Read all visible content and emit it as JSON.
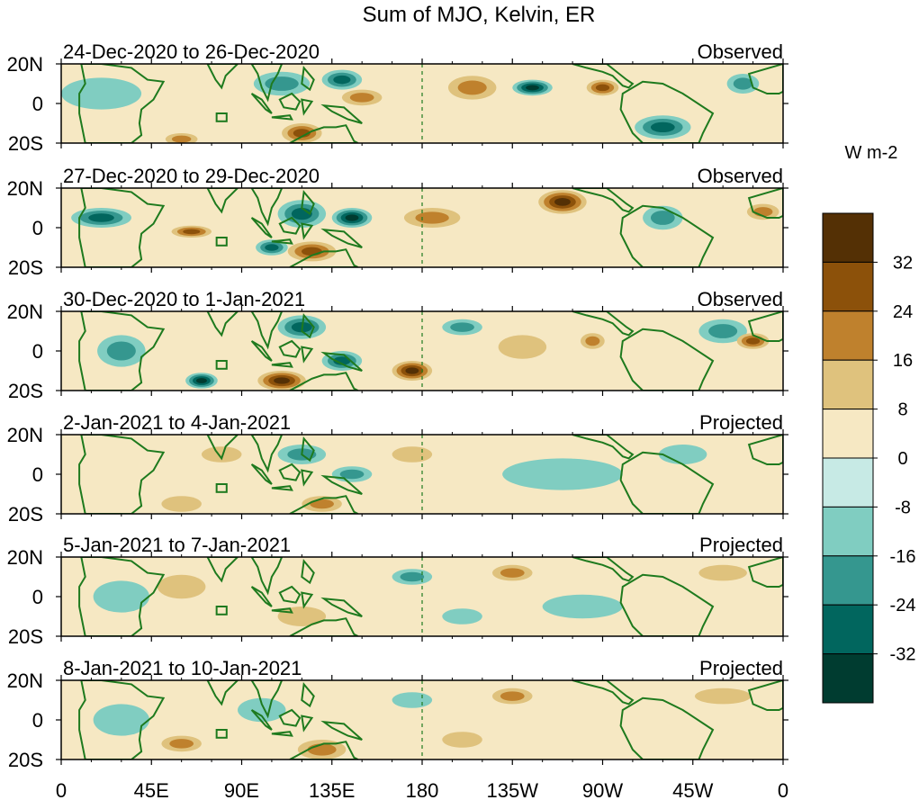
{
  "chart_data": {
    "type": "heatmap",
    "title": "Sum of MJO, Kelvin, ER",
    "units": "W m-2",
    "x_tick_labels": [
      "0",
      "45E",
      "90E",
      "135E",
      "180",
      "135W",
      "90W",
      "45W",
      "0"
    ],
    "y_tick_labels": [
      "20N",
      "0",
      "20S"
    ],
    "y_range": [
      -20,
      20
    ],
    "x_range": [
      0,
      360
    ],
    "colorbar": {
      "labels": [
        "32",
        "24",
        "16",
        "8",
        "0",
        "-8",
        "-16",
        "-24",
        "-32"
      ],
      "levels": [
        32,
        24,
        16,
        8,
        0,
        -8,
        -16,
        -24,
        -32
      ],
      "colors": [
        "#543005",
        "#8c510a",
        "#bf812d",
        "#dfc27d",
        "#f6e8c3",
        "#c7eae5",
        "#80cdc1",
        "#35978f",
        "#01665e",
        "#003c30"
      ]
    },
    "palette": {
      "pos1": "#f6e8c3",
      "pos2": "#dfc27d",
      "pos3": "#bf812d",
      "pos4": "#8c510a",
      "pos5": "#543005",
      "neg1": "#c7eae5",
      "neg2": "#80cdc1",
      "neg3": "#35978f",
      "neg4": "#01665e",
      "neg5": "#003c30",
      "coast": "#1e7a1e"
    },
    "panels": [
      {
        "date_range": "24-Dec-2020 to 26-Dec-2020",
        "label": "Observed",
        "blobs": [
          [
            110,
            10,
            14,
            6,
            -16
          ],
          [
            140,
            12,
            10,
            5,
            -24
          ],
          [
            120,
            -15,
            10,
            5,
            24
          ],
          [
            60,
            -18,
            8,
            3,
            16
          ],
          [
            150,
            3,
            10,
            4,
            16
          ],
          [
            205,
            8,
            12,
            6,
            16
          ],
          [
            235,
            8,
            10,
            4,
            -32
          ],
          [
            270,
            8,
            8,
            4,
            24
          ],
          [
            300,
            -12,
            14,
            6,
            -24
          ],
          [
            20,
            5,
            20,
            8,
            -8
          ],
          [
            340,
            10,
            8,
            5,
            -16
          ]
        ]
      },
      {
        "date_range": "27-Dec-2020 to 29-Dec-2020",
        "label": "Observed",
        "blobs": [
          [
            120,
            7,
            12,
            7,
            -24
          ],
          [
            145,
            5,
            10,
            5,
            -32
          ],
          [
            105,
            -10,
            8,
            4,
            -24
          ],
          [
            125,
            -12,
            12,
            5,
            24
          ],
          [
            185,
            5,
            14,
            5,
            16
          ],
          [
            250,
            13,
            12,
            6,
            32
          ],
          [
            300,
            5,
            10,
            6,
            -16
          ],
          [
            20,
            5,
            15,
            5,
            -24
          ],
          [
            65,
            -2,
            10,
            3,
            24
          ],
          [
            350,
            8,
            8,
            4,
            16
          ]
        ]
      },
      {
        "date_range": "30-Dec-2020 to 1-Jan-2021",
        "label": "Observed",
        "blobs": [
          [
            120,
            12,
            12,
            6,
            -24
          ],
          [
            140,
            -5,
            10,
            5,
            -24
          ],
          [
            110,
            -15,
            12,
            5,
            32
          ],
          [
            175,
            -10,
            10,
            5,
            32
          ],
          [
            70,
            -15,
            8,
            4,
            -32
          ],
          [
            30,
            0,
            12,
            8,
            -16
          ],
          [
            200,
            12,
            10,
            4,
            -16
          ],
          [
            330,
            10,
            12,
            6,
            -16
          ],
          [
            345,
            5,
            8,
            4,
            24
          ],
          [
            265,
            5,
            6,
            4,
            16
          ],
          [
            230,
            2,
            12,
            6,
            8
          ]
        ]
      },
      {
        "date_range": "2-Jan-2021 to 4-Jan-2021",
        "label": "Projected",
        "blobs": [
          [
            120,
            10,
            12,
            5,
            -16
          ],
          [
            145,
            0,
            10,
            4,
            -16
          ],
          [
            130,
            -15,
            10,
            4,
            16
          ],
          [
            60,
            -15,
            10,
            4,
            8
          ],
          [
            175,
            10,
            10,
            4,
            8
          ],
          [
            250,
            0,
            30,
            8,
            -8
          ],
          [
            310,
            10,
            12,
            5,
            -8
          ],
          [
            80,
            10,
            10,
            4,
            8
          ]
        ]
      },
      {
        "date_range": "5-Jan-2021 to 7-Jan-2021",
        "label": "Projected",
        "blobs": [
          [
            225,
            12,
            10,
            4,
            16
          ],
          [
            120,
            -10,
            12,
            5,
            8
          ],
          [
            175,
            10,
            10,
            4,
            -16
          ],
          [
            200,
            -10,
            10,
            4,
            -8
          ],
          [
            60,
            5,
            12,
            6,
            8
          ],
          [
            330,
            12,
            12,
            4,
            8
          ],
          [
            30,
            0,
            14,
            8,
            -8
          ],
          [
            260,
            -5,
            20,
            6,
            -8
          ]
        ]
      },
      {
        "date_range": "8-Jan-2021 to 10-Jan-2021",
        "label": "Projected",
        "blobs": [
          [
            225,
            12,
            10,
            4,
            16
          ],
          [
            130,
            -15,
            12,
            5,
            16
          ],
          [
            60,
            -12,
            10,
            4,
            16
          ],
          [
            175,
            10,
            10,
            4,
            -8
          ],
          [
            330,
            12,
            14,
            4,
            8
          ],
          [
            30,
            0,
            14,
            8,
            -8
          ],
          [
            100,
            5,
            12,
            6,
            -8
          ],
          [
            200,
            -10,
            10,
            4,
            8
          ]
        ]
      }
    ]
  }
}
